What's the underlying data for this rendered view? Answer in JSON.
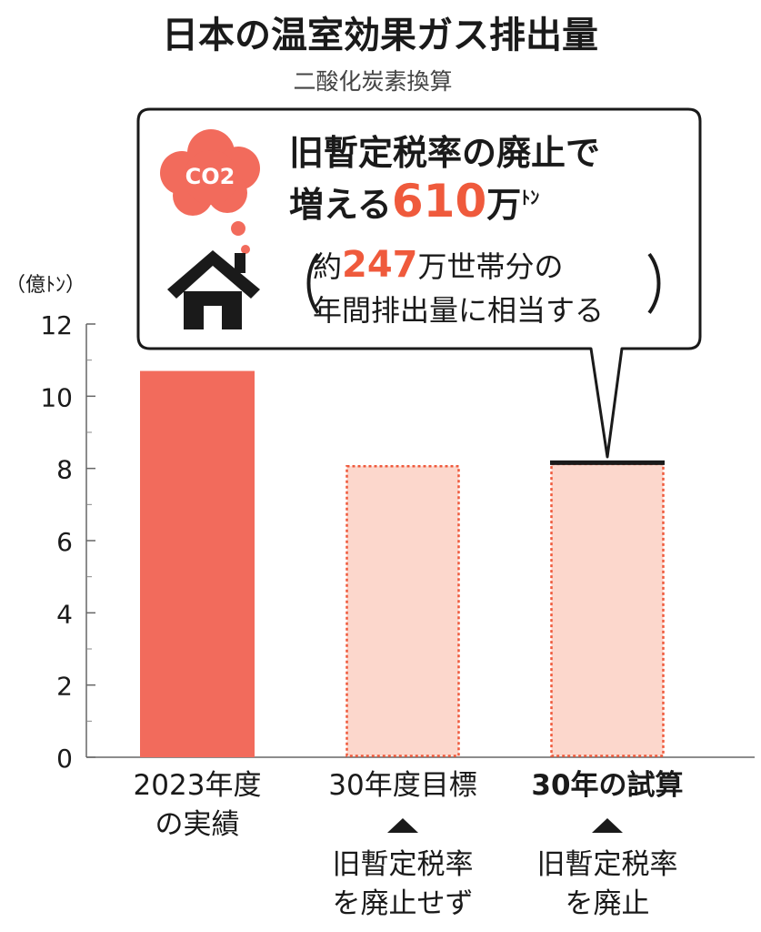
{
  "chart_data": {
    "type": "bar",
    "title": "日本の温室効果ガス排出量",
    "subtitle": "二酸化炭素換算",
    "ylabel": "（億ﾄﾝ）",
    "ylim": [
      0,
      12
    ],
    "yticks": [
      "0",
      "2",
      "4",
      "6",
      "8",
      "10",
      "12"
    ],
    "categories": [
      {
        "line1": "2023年度",
        "line2": "の実績",
        "bold": false
      },
      {
        "line1": "30年度目標",
        "line2": "",
        "bold": false
      },
      {
        "line1": "30年の試算",
        "line2": "",
        "bold": true
      }
    ],
    "values": [
      10.7,
      8.1,
      8.16
    ],
    "styles": [
      "solid",
      "dotted",
      "dotted"
    ],
    "colors": {
      "solid": "#f26b5c",
      "light": "#fcd7cc",
      "accent": "#ef5a3c",
      "dark": "#1a1a1a"
    },
    "sub_notes": [
      {
        "index": 1,
        "line1": "旧暫定税率",
        "line2": "を廃止せず"
      },
      {
        "index": 2,
        "line1": "旧暫定税率",
        "line2": "を廃止"
      }
    ],
    "callout": {
      "icon_badge": "CO2",
      "line1": "旧暫定税率の廃止で",
      "line2_prefix": "増える",
      "line2_number": "610",
      "line2_unit": "万",
      "line2_small": "ﾄﾝ",
      "paren_open": "（",
      "paren_close": "）",
      "line3_prefix": "約",
      "line3_number": "247",
      "line3_suffix": "万世帯分の",
      "line4": "年間排出量に相当する"
    }
  }
}
